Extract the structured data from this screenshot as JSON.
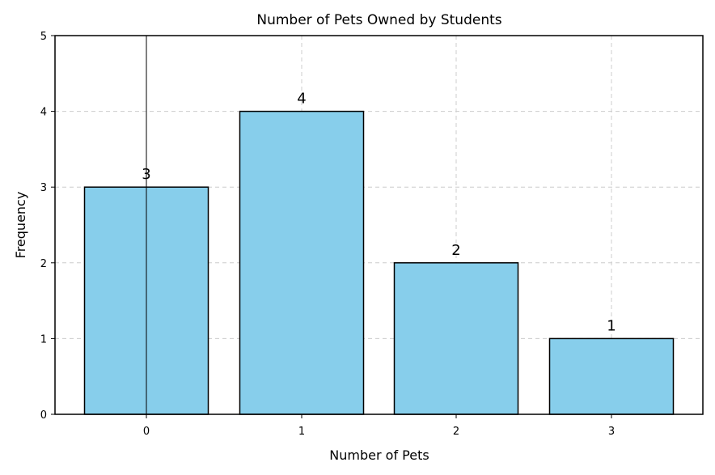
{
  "chart_data": {
    "type": "bar",
    "title": "Number of Pets Owned by Students",
    "xlabel": "Number of Pets",
    "ylabel": "Frequency",
    "categories": [
      "0",
      "1",
      "2",
      "3"
    ],
    "values": [
      3,
      4,
      2,
      1
    ],
    "data_labels": [
      "3",
      "4",
      "2",
      "1"
    ],
    "ylim": [
      0,
      5
    ],
    "yticks": [
      0,
      1,
      2,
      3,
      4,
      5
    ],
    "grid": true,
    "bar_color": "#87CEEB",
    "edge_color": "#000000",
    "grid_color": "#cccccc"
  }
}
